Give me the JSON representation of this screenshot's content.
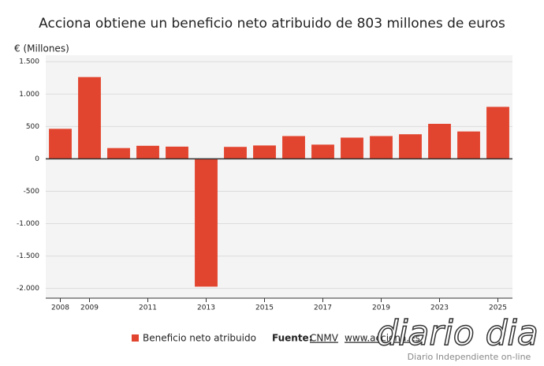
{
  "chart_data": {
    "type": "bar",
    "title": "Acciona obtiene un beneficio neto atribuido de 803 millones de euros",
    "y_label": "€ (Millones)",
    "categories": [
      "2008",
      "2009",
      null,
      "2011",
      null,
      "2013",
      null,
      "2015",
      null,
      "2017",
      null,
      "2019",
      null,
      "2023",
      null,
      "2025"
    ],
    "series": [
      {
        "name": "Beneficio neto atribuido",
        "color": "#e2452f",
        "values": [
          464,
          1263,
          167,
          202,
          189,
          -1972,
          185,
          207,
          352,
          220,
          328,
          352,
          380,
          541,
          423,
          803
        ]
      }
    ],
    "ylim": [
      -2150,
      1600
    ],
    "yticks": [
      {
        "value": 1500,
        "label": "1.500"
      },
      {
        "value": 1000,
        "label": "1.000"
      },
      500,
      0,
      -500,
      {
        "value": -1000,
        "label": "-1.000"
      },
      {
        "value": -1500,
        "label": "-1.500"
      },
      {
        "value": -2000,
        "label": "-2.000"
      }
    ],
    "grid": true,
    "source_label": "Fuente:",
    "source_links": [
      "CNMV",
      "www.acciona.es"
    ],
    "watermark": {
      "brand": "diario dia",
      "tagline": "Diario Independiente on-line"
    }
  }
}
